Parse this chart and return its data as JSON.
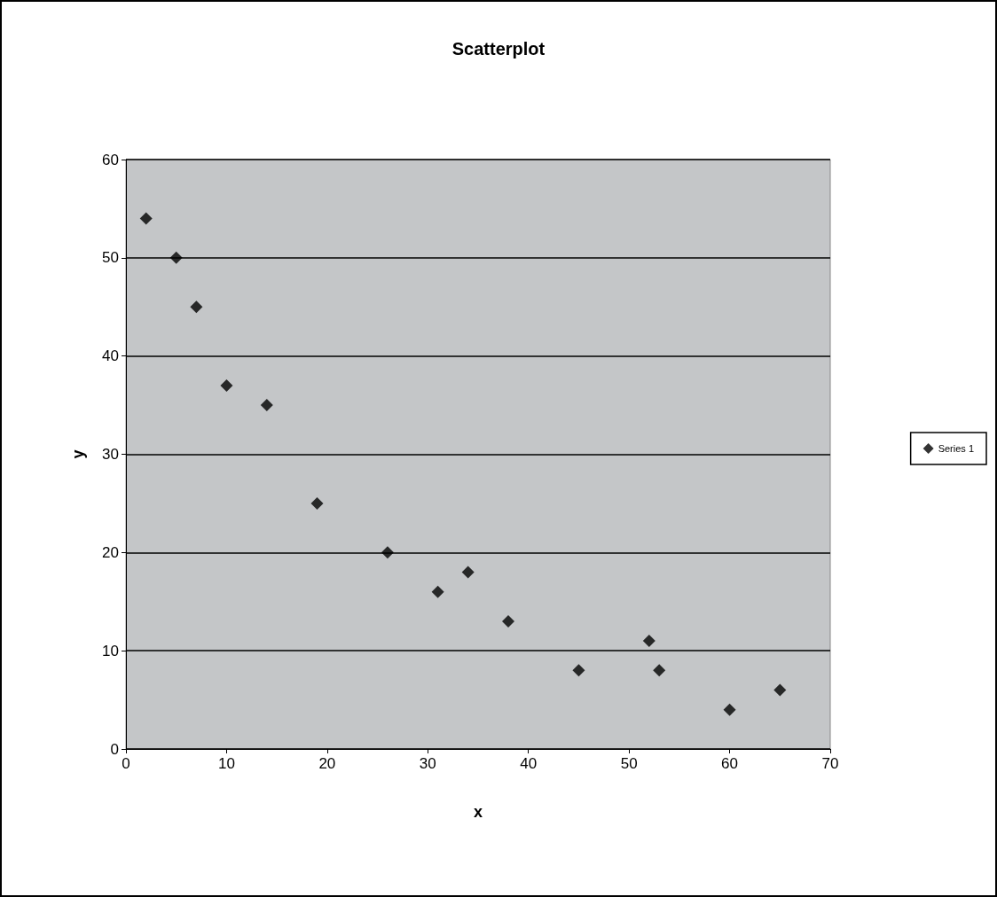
{
  "chart_data": {
    "type": "scatter",
    "title": "Scatterplot",
    "xlabel": "x",
    "ylabel": "y",
    "x": [
      2,
      5,
      7,
      10,
      14,
      19,
      26,
      31,
      34,
      38,
      45,
      52,
      53,
      60,
      65
    ],
    "series": [
      {
        "name": "Series 1",
        "color": "#000000",
        "values": [
          54,
          50,
          45,
          37,
          35,
          25,
          20,
          16,
          18,
          13,
          8,
          11,
          8,
          4,
          6
        ]
      }
    ],
    "xlim": [
      0,
      70
    ],
    "xticks": [
      0,
      10,
      20,
      30,
      40,
      50,
      60,
      70
    ],
    "ylim": [
      0,
      60
    ],
    "yticks": [
      0,
      10,
      20,
      30,
      40,
      50,
      60
    ],
    "grid": "y",
    "legend": "right",
    "marker": "diamond"
  }
}
